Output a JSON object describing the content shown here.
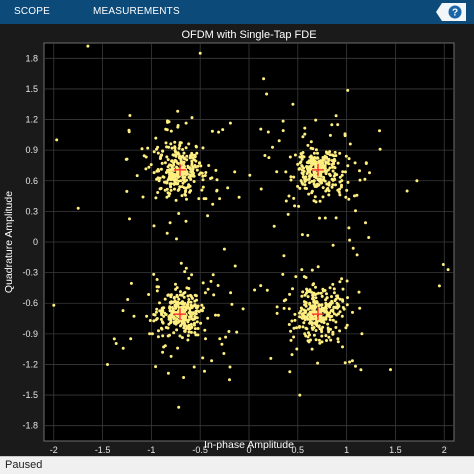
{
  "toolstrip": {
    "tabs": [
      {
        "label": "SCOPE"
      },
      {
        "label": "MEASUREMENTS"
      }
    ],
    "help_icon": "help-icon"
  },
  "status": {
    "text": "Paused"
  },
  "colors": {
    "toolstrip_bg": "#0c4a7a",
    "plot_bg": "#000000",
    "figure_bg": "#1a1a1a",
    "points": "#ffef80",
    "reference": "#ff3030",
    "text": "#ffffff"
  },
  "chart_data": {
    "type": "scatter",
    "title": "OFDM with Single-Tap FDE",
    "xlabel": "In-phase Amplitude",
    "ylabel": "Quadrature Amplitude",
    "xlim": [
      -2.1,
      2.1
    ],
    "ylim": [
      -1.95,
      1.95
    ],
    "xticks": [
      -2,
      -1.5,
      -1,
      -0.5,
      0,
      0.5,
      1,
      1.5,
      2
    ],
    "xtick_labels": [
      "-2",
      "-1.5",
      "-1",
      "-0.5",
      "0",
      "0.5",
      "1",
      "1.5",
      "2"
    ],
    "yticks": [
      1.8,
      1.5,
      1.2,
      0.9,
      0.6,
      0.3,
      0,
      -0.3,
      -0.6,
      -0.9,
      -1.2,
      -1.5,
      -1.8
    ],
    "ytick_labels": [
      "1.8",
      "1.5",
      "1.2",
      "0.9",
      "0.6",
      "0.3",
      "0",
      "-0.3",
      "-0.6",
      "-0.9",
      "-1.2",
      "-1.5",
      "-1.8"
    ],
    "grid": true,
    "reference_constellation": [
      {
        "x": -0.707,
        "y": 0.707
      },
      {
        "x": 0.707,
        "y": 0.707
      },
      {
        "x": -0.707,
        "y": -0.707
      },
      {
        "x": 0.707,
        "y": -0.707
      }
    ],
    "outliers": [
      {
        "x": -1.65,
        "y": 1.92
      },
      {
        "x": -1.97,
        "y": 1.0
      },
      {
        "x": 1.99,
        "y": -0.22
      },
      {
        "x": 2.04,
        "y": -0.27
      },
      {
        "x": 1.95,
        "y": -0.43
      },
      {
        "x": -1.75,
        "y": 0.33
      },
      {
        "x": -1.22,
        "y": 1.24
      },
      {
        "x": 1.72,
        "y": 0.6
      },
      {
        "x": 1.62,
        "y": 0.5
      },
      {
        "x": -0.72,
        "y": -1.62
      },
      {
        "x": 0.52,
        "y": -1.5
      },
      {
        "x": -1.45,
        "y": -1.2
      },
      {
        "x": 1.45,
        "y": -1.25
      },
      {
        "x": -2.0,
        "y": -0.62
      },
      {
        "x": -1.38,
        "y": -0.95
      },
      {
        "x": -0.5,
        "y": 1.85
      },
      {
        "x": 0.15,
        "y": 1.6
      },
      {
        "x": 0.45,
        "y": 1.35
      },
      {
        "x": -0.2,
        "y": -1.35
      },
      {
        "x": 0.18,
        "y": 1.45
      }
    ]
  }
}
